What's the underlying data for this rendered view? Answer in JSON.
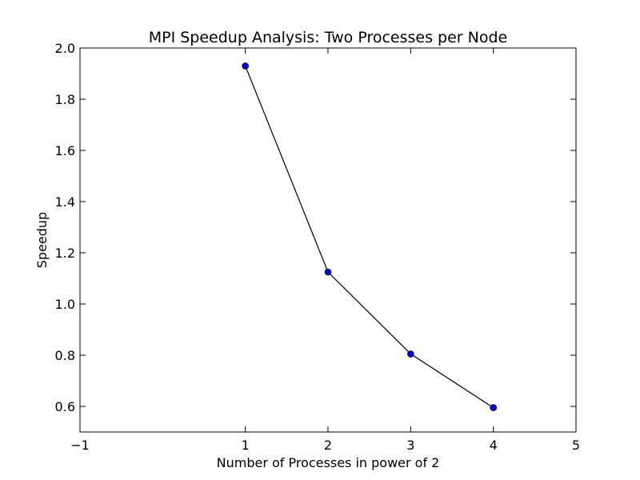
{
  "chart_data": {
    "type": "line",
    "title": "MPI Speedup Analysis: Two Processes per Node",
    "xlabel": "Number of Processes in power of 2",
    "ylabel": "Speedup",
    "xlim": [
      -1,
      5
    ],
    "ylim": [
      0.5,
      2.0
    ],
    "x_ticks": [
      -1,
      1,
      2,
      3,
      4,
      5
    ],
    "x_tick_labels": [
      "−1",
      "1",
      "2",
      "3",
      "4",
      "5"
    ],
    "y_ticks": [
      0.6,
      0.8,
      1.0,
      1.2,
      1.4,
      1.6,
      1.8,
      2.0
    ],
    "y_tick_labels": [
      "0.6",
      "0.8",
      "1.0",
      "1.2",
      "1.4",
      "1.6",
      "1.8",
      "2.0"
    ],
    "grid": false,
    "series": [
      {
        "x": [
          1,
          2,
          3,
          4
        ],
        "y": [
          1.93,
          1.125,
          0.805,
          0.595
        ],
        "line_color": "#000000",
        "marker_color": "#0000cc"
      }
    ]
  }
}
